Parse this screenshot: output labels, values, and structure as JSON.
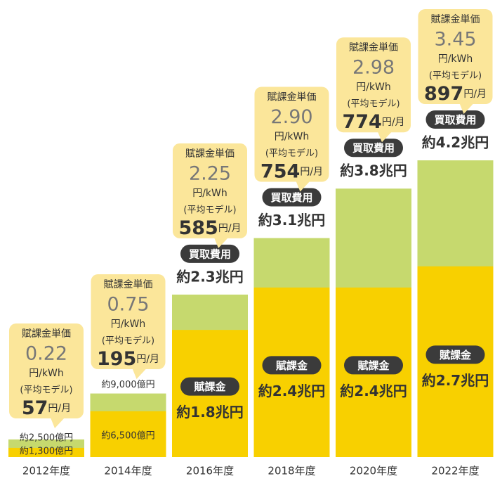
{
  "chart_data": {
    "type": "bar",
    "categories": [
      "2012年度",
      "2014年度",
      "2016年度",
      "2018年度",
      "2020年度",
      "2022年度"
    ],
    "series": [
      {
        "name": "買取費用",
        "color": "#c6d96e",
        "values": [
          0.25,
          0.9,
          2.3,
          3.1,
          3.8,
          4.2
        ],
        "value_labels": [
          "約2,500億円",
          "約9,000億円",
          "約2.3兆円",
          "約3.1兆円",
          "約3.8兆円",
          "約4.2兆円"
        ]
      },
      {
        "name": "賦課金",
        "color": "#f8d000",
        "values": [
          0.13,
          0.65,
          1.8,
          2.4,
          2.4,
          2.7
        ],
        "value_labels": [
          "約1,300億円",
          "約6,500億円",
          "約1.8兆円",
          "約2.4兆円",
          "約2.4兆円",
          "約2.7兆円"
        ]
      }
    ],
    "ylim": [
      0,
      4.2
    ],
    "callout_title": "賦課金単価",
    "unit_price_unit": "円/kWh",
    "model_label": "(平均モデル)",
    "monthly_unit": "円/月",
    "unit_prices": [
      {
        "value": 0.22,
        "label": "0.22"
      },
      {
        "value": 0.75,
        "label": "0.75"
      },
      {
        "value": 2.25,
        "label": "2.25"
      },
      {
        "value": 2.9,
        "label": "2.90"
      },
      {
        "value": 2.98,
        "label": "2.98"
      },
      {
        "value": 3.45,
        "label": "3.45"
      }
    ],
    "monthly": [
      57,
      195,
      585,
      754,
      774,
      897
    ]
  }
}
